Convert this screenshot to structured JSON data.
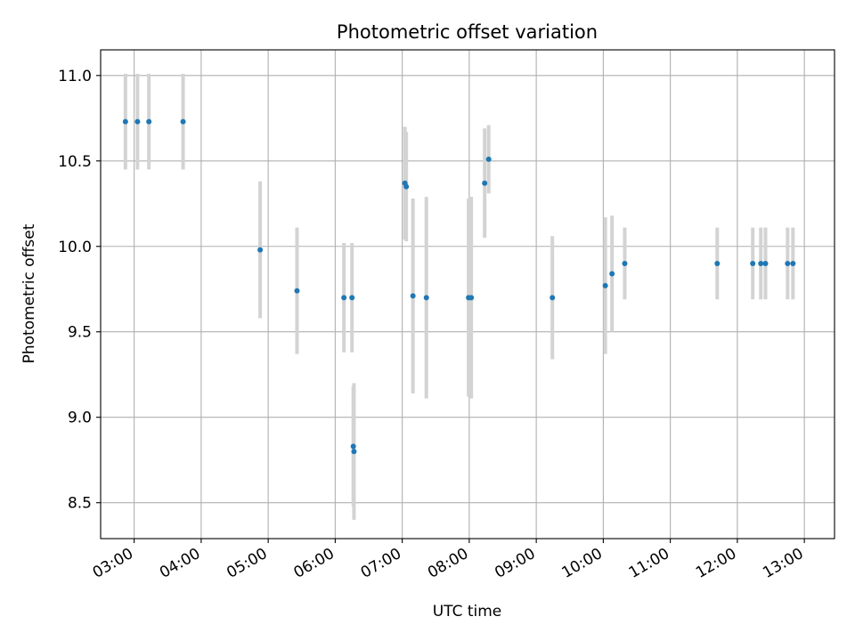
{
  "chart_data": {
    "type": "scatter",
    "title": "Photometric offset variation",
    "xlabel": "UTC time",
    "ylabel": "Photometric offset",
    "x_unit": "hours (UTC)",
    "xlim": [
      2.5,
      13.45
    ],
    "ylim": [
      8.29,
      11.15
    ],
    "x_ticks": [
      3,
      4,
      5,
      6,
      7,
      8,
      9,
      10,
      11,
      12,
      13
    ],
    "x_tick_labels": [
      "03:00",
      "04:00",
      "05:00",
      "06:00",
      "07:00",
      "08:00",
      "09:00",
      "10:00",
      "11:00",
      "12:00",
      "13:00"
    ],
    "y_ticks": [
      8.5,
      9.0,
      9.5,
      10.0,
      10.5,
      11.0
    ],
    "y_tick_labels": [
      "8.5",
      "9.0",
      "9.5",
      "10.0",
      "10.5",
      "11.0"
    ],
    "grid": true,
    "legend": "none",
    "colors": {
      "point": "#1f77b4",
      "errorbar": "#d3d3d3"
    },
    "points": [
      {
        "x": 2.87,
        "y": 10.73,
        "err": 0.28
      },
      {
        "x": 3.05,
        "y": 10.73,
        "err": 0.28
      },
      {
        "x": 3.22,
        "y": 10.73,
        "err": 0.28
      },
      {
        "x": 3.73,
        "y": 10.73,
        "err": 0.28
      },
      {
        "x": 4.88,
        "y": 9.98,
        "err": 0.4
      },
      {
        "x": 5.43,
        "y": 9.74,
        "err": 0.37
      },
      {
        "x": 6.13,
        "y": 9.7,
        "err": 0.32
      },
      {
        "x": 6.25,
        "y": 9.7,
        "err": 0.32
      },
      {
        "x": 6.27,
        "y": 8.83,
        "err": 0.35
      },
      {
        "x": 6.28,
        "y": 8.8,
        "err": 0.4
      },
      {
        "x": 7.04,
        "y": 10.37,
        "err": 0.33
      },
      {
        "x": 7.06,
        "y": 10.35,
        "err": 0.32
      },
      {
        "x": 7.16,
        "y": 9.71,
        "err": 0.57
      },
      {
        "x": 7.36,
        "y": 9.7,
        "err": 0.59
      },
      {
        "x": 7.99,
        "y": 9.7,
        "err": 0.58
      },
      {
        "x": 8.03,
        "y": 9.7,
        "err": 0.59
      },
      {
        "x": 8.23,
        "y": 10.37,
        "err": 0.32
      },
      {
        "x": 8.29,
        "y": 10.51,
        "err": 0.2
      },
      {
        "x": 9.24,
        "y": 9.7,
        "err": 0.36
      },
      {
        "x": 10.03,
        "y": 9.77,
        "err": 0.4
      },
      {
        "x": 10.13,
        "y": 9.84,
        "err": 0.34
      },
      {
        "x": 10.32,
        "y": 9.9,
        "err": 0.21
      },
      {
        "x": 11.7,
        "y": 9.9,
        "err": 0.21
      },
      {
        "x": 12.23,
        "y": 9.9,
        "err": 0.21
      },
      {
        "x": 12.35,
        "y": 9.9,
        "err": 0.21
      },
      {
        "x": 12.42,
        "y": 9.9,
        "err": 0.21
      },
      {
        "x": 12.75,
        "y": 9.9,
        "err": 0.21
      },
      {
        "x": 12.83,
        "y": 9.9,
        "err": 0.21
      }
    ]
  }
}
